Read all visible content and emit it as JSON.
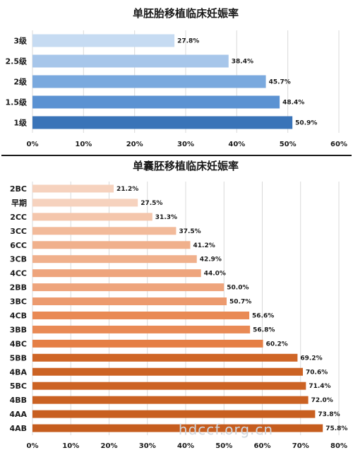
{
  "chart_data": [
    {
      "type": "bar",
      "orientation": "horizontal",
      "title": "单胚胎移植临床妊娠率",
      "categories": [
        "3级",
        "2.5级",
        "2级",
        "1.5级",
        "1级"
      ],
      "values": [
        27.8,
        38.4,
        45.7,
        48.4,
        50.9
      ],
      "value_labels": [
        "27.8%",
        "38.4%",
        "45.7%",
        "48.4%",
        "50.9%"
      ],
      "xlim": [
        0,
        60
      ],
      "ticks": [
        0,
        10,
        20,
        30,
        40,
        50,
        60
      ],
      "tick_labels": [
        "0%",
        "10%",
        "20%",
        "30%",
        "40%",
        "50%",
        "60%"
      ],
      "grid": true,
      "bar_colors": [
        "#c6dbf2",
        "#a7c6ea",
        "#7aa9de",
        "#5b92d2",
        "#3a74b8"
      ]
    },
    {
      "type": "bar",
      "orientation": "horizontal",
      "title": "单囊胚移植临床妊娠率",
      "categories": [
        "2BC",
        "早期",
        "2CC",
        "3CC",
        "6CC",
        "3CB",
        "4CC",
        "2BB",
        "3BC",
        "4CB",
        "3BB",
        "4BC",
        "5BB",
        "4BA",
        "5BC",
        "4BB",
        "4AA",
        "4AB"
      ],
      "values": [
        21.2,
        27.5,
        31.3,
        37.5,
        41.2,
        42.9,
        44.0,
        50.0,
        50.7,
        56.6,
        56.8,
        60.2,
        69.2,
        70.6,
        71.4,
        72.0,
        73.8,
        75.8
      ],
      "value_labels": [
        "21.2%",
        "27.5%",
        "31.3%",
        "37.5%",
        "41.2%",
        "42.9%",
        "44.0%",
        "50.0%",
        "50.7%",
        "56.6%",
        "56.8%",
        "60.2%",
        "69.2%",
        "70.6%",
        "71.4%",
        "72.0%",
        "73.8%",
        "75.8%"
      ],
      "xlim": [
        0,
        80
      ],
      "ticks": [
        0,
        10,
        20,
        30,
        40,
        50,
        60,
        70,
        80
      ],
      "tick_labels": [
        "0%",
        "10%",
        "20%",
        "30%",
        "40%",
        "50%",
        "60%",
        "70%",
        "80%"
      ],
      "grid": true,
      "bar_colors": [
        "#f6d2be",
        "#f6d2be",
        "#f4c6ac",
        "#f2ba9a",
        "#f0b08c",
        "#f0b08c",
        "#eea47c",
        "#eea47c",
        "#ec9a6e",
        "#e98a55",
        "#e98a55",
        "#e57f45",
        "#cf6526",
        "#cc6324",
        "#cc6324",
        "#ca6122",
        "#c85f20",
        "#c65d1e"
      ]
    }
  ],
  "watermark": "hdccf.org.cn"
}
